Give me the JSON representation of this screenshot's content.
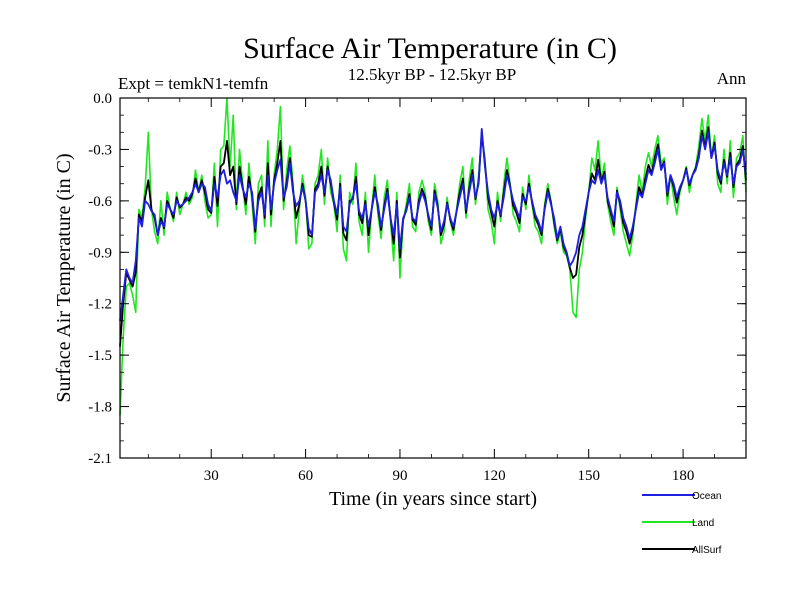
{
  "colors": {
    "ocean": "#1f1fe0",
    "land": "#22e622",
    "allsurf": "#000000",
    "axis": "#000000",
    "background": "#ffffff"
  },
  "chart_data": {
    "type": "line",
    "title": "Surface Air Temperature (in C)",
    "subtitle": "12.5kyr BP - 12.5kyr BP",
    "left_string": "Expt = temkN1-temfn",
    "right_string": "Ann",
    "xlabel": "Time (in years since start)",
    "ylabel": "Surface Air Temperature (in C)",
    "xlim": [
      1,
      200
    ],
    "ylim": [
      -2.1,
      0.0
    ],
    "xticks": [
      30,
      60,
      90,
      120,
      150,
      180
    ],
    "yticks": [
      0.0,
      -0.3,
      -0.6,
      -0.9,
      -1.2,
      -1.5,
      -1.8,
      -2.1
    ],
    "ytick_labels": [
      "0.0",
      "-0.3",
      "-0.6",
      "-0.9",
      "-1.2",
      "-1.5",
      "-1.8",
      "-2.1"
    ],
    "grid": false,
    "legend_position": "bottom-right",
    "x_start": 1,
    "series": [
      {
        "name": "Ocean",
        "color": "#1f1fe0",
        "values": [
          -1.3,
          -1.15,
          -1.0,
          -1.05,
          -1.08,
          -0.95,
          -0.7,
          -0.75,
          -0.6,
          -0.62,
          -0.66,
          -0.68,
          -0.8,
          -0.72,
          -0.75,
          -0.62,
          -0.65,
          -0.68,
          -0.6,
          -0.63,
          -0.62,
          -0.6,
          -0.58,
          -0.55,
          -0.5,
          -0.55,
          -0.5,
          -0.52,
          -0.62,
          -0.66,
          -0.5,
          -0.58,
          -0.45,
          -0.42,
          -0.5,
          -0.48,
          -0.55,
          -0.6,
          -0.45,
          -0.53,
          -0.58,
          -0.5,
          -0.55,
          -0.76,
          -0.6,
          -0.55,
          -0.68,
          -0.45,
          -0.65,
          -0.5,
          -0.42,
          -0.36,
          -0.58,
          -0.52,
          -0.38,
          -0.55,
          -0.63,
          -0.6,
          -0.52,
          -0.6,
          -0.76,
          -0.8,
          -0.55,
          -0.52,
          -0.45,
          -0.55,
          -0.42,
          -0.48,
          -0.6,
          -0.68,
          -0.52,
          -0.75,
          -0.78,
          -0.62,
          -0.58,
          -0.5,
          -0.66,
          -0.7,
          -0.62,
          -0.75,
          -0.65,
          -0.55,
          -0.62,
          -0.75,
          -0.65,
          -0.55,
          -0.7,
          -0.8,
          -0.62,
          -0.88,
          -0.7,
          -0.66,
          -0.58,
          -0.7,
          -0.72,
          -0.62,
          -0.55,
          -0.6,
          -0.68,
          -0.75,
          -0.56,
          -0.64,
          -0.78,
          -0.72,
          -0.62,
          -0.7,
          -0.75,
          -0.66,
          -0.58,
          -0.5,
          -0.65,
          -0.55,
          -0.45,
          -0.58,
          -0.5,
          -0.18,
          -0.4,
          -0.55,
          -0.65,
          -0.7,
          -0.62,
          -0.68,
          -0.58,
          -0.45,
          -0.52,
          -0.6,
          -0.65,
          -0.7,
          -0.58,
          -0.6,
          -0.52,
          -0.6,
          -0.68,
          -0.72,
          -0.78,
          -0.65,
          -0.55,
          -0.62,
          -0.7,
          -0.82,
          -0.75,
          -0.85,
          -0.9,
          -0.98,
          -0.95,
          -0.9,
          -0.8,
          -0.75,
          -0.65,
          -0.55,
          -0.48,
          -0.5,
          -0.42,
          -0.5,
          -0.45,
          -0.58,
          -0.65,
          -0.72,
          -0.55,
          -0.6,
          -0.7,
          -0.75,
          -0.82,
          -0.75,
          -0.65,
          -0.55,
          -0.58,
          -0.5,
          -0.42,
          -0.45,
          -0.38,
          -0.3,
          -0.42,
          -0.38,
          -0.55,
          -0.45,
          -0.5,
          -0.58,
          -0.52,
          -0.48,
          -0.42,
          -0.5,
          -0.45,
          -0.42,
          -0.35,
          -0.22,
          -0.3,
          -0.2,
          -0.35,
          -0.28,
          -0.42,
          -0.48,
          -0.38,
          -0.45,
          -0.35,
          -0.5,
          -0.4,
          -0.38,
          -0.3,
          -0.45
        ]
      },
      {
        "name": "Land",
        "color": "#22e622",
        "values": [
          -1.85,
          -1.4,
          -1.1,
          -1.08,
          -1.15,
          -1.25,
          -0.65,
          -0.7,
          -0.52,
          -0.2,
          -0.65,
          -0.78,
          -0.85,
          -0.6,
          -0.8,
          -0.55,
          -0.65,
          -0.72,
          -0.55,
          -0.68,
          -0.62,
          -0.55,
          -0.62,
          -0.58,
          -0.42,
          -0.55,
          -0.45,
          -0.6,
          -0.7,
          -0.68,
          -0.38,
          -0.75,
          -0.3,
          -0.28,
          0.0,
          -0.4,
          -0.1,
          -0.65,
          -0.3,
          -0.5,
          -0.68,
          -0.38,
          -0.62,
          -0.85,
          -0.5,
          -0.45,
          -0.75,
          -0.25,
          -0.75,
          -0.45,
          -0.3,
          -0.05,
          -0.65,
          -0.42,
          -0.28,
          -0.5,
          -0.85,
          -0.65,
          -0.45,
          -0.58,
          -0.88,
          -0.85,
          -0.5,
          -0.45,
          -0.3,
          -0.62,
          -0.35,
          -0.55,
          -0.62,
          -0.78,
          -0.45,
          -0.88,
          -0.95,
          -0.55,
          -0.62,
          -0.38,
          -0.72,
          -0.8,
          -0.55,
          -0.9,
          -0.65,
          -0.45,
          -0.68,
          -0.82,
          -0.58,
          -0.48,
          -0.72,
          -0.95,
          -0.55,
          -1.05,
          -0.72,
          -0.62,
          -0.5,
          -0.75,
          -0.78,
          -0.55,
          -0.48,
          -0.55,
          -0.72,
          -0.8,
          -0.5,
          -0.6,
          -0.85,
          -0.78,
          -0.58,
          -0.72,
          -0.8,
          -0.65,
          -0.5,
          -0.4,
          -0.7,
          -0.48,
          -0.35,
          -0.62,
          -0.45,
          -0.22,
          -0.35,
          -0.65,
          -0.72,
          -0.85,
          -0.55,
          -0.72,
          -0.5,
          -0.35,
          -0.5,
          -0.68,
          -0.72,
          -0.78,
          -0.52,
          -0.65,
          -0.45,
          -0.62,
          -0.75,
          -0.78,
          -0.85,
          -0.62,
          -0.5,
          -0.6,
          -0.75,
          -0.85,
          -0.78,
          -0.9,
          -0.92,
          -1.0,
          -1.25,
          -1.28,
          -1.0,
          -0.9,
          -0.7,
          -0.55,
          -0.35,
          -0.42,
          -0.25,
          -0.48,
          -0.38,
          -0.62,
          -0.72,
          -0.8,
          -0.52,
          -0.65,
          -0.78,
          -0.85,
          -0.92,
          -0.8,
          -0.62,
          -0.45,
          -0.55,
          -0.4,
          -0.32,
          -0.4,
          -0.3,
          -0.22,
          -0.38,
          -0.35,
          -0.62,
          -0.45,
          -0.58,
          -0.68,
          -0.55,
          -0.48,
          -0.4,
          -0.55,
          -0.45,
          -0.4,
          -0.28,
          -0.12,
          -0.25,
          -0.1,
          -0.35,
          -0.22,
          -0.5,
          -0.55,
          -0.3,
          -0.5,
          -0.25,
          -0.58,
          -0.35,
          -0.32,
          -0.22,
          -0.55
        ]
      },
      {
        "name": "AllSurf",
        "color": "#000000",
        "values": [
          -1.45,
          -1.2,
          -1.02,
          -1.06,
          -1.1,
          -1.02,
          -0.68,
          -0.72,
          -0.58,
          -0.48,
          -0.65,
          -0.7,
          -0.8,
          -0.7,
          -0.76,
          -0.6,
          -0.65,
          -0.7,
          -0.58,
          -0.64,
          -0.62,
          -0.58,
          -0.6,
          -0.56,
          -0.47,
          -0.55,
          -0.48,
          -0.55,
          -0.65,
          -0.67,
          -0.46,
          -0.63,
          -0.4,
          -0.38,
          -0.25,
          -0.45,
          -0.4,
          -0.62,
          -0.4,
          -0.52,
          -0.62,
          -0.46,
          -0.57,
          -0.78,
          -0.57,
          -0.52,
          -0.7,
          -0.38,
          -0.68,
          -0.48,
          -0.38,
          -0.25,
          -0.6,
          -0.49,
          -0.35,
          -0.53,
          -0.7,
          -0.62,
          -0.5,
          -0.6,
          -0.8,
          -0.81,
          -0.53,
          -0.5,
          -0.4,
          -0.57,
          -0.4,
          -0.5,
          -0.61,
          -0.71,
          -0.5,
          -0.79,
          -0.83,
          -0.6,
          -0.59,
          -0.46,
          -0.68,
          -0.73,
          -0.6,
          -0.8,
          -0.65,
          -0.52,
          -0.64,
          -0.77,
          -0.63,
          -0.53,
          -0.7,
          -0.85,
          -0.6,
          -0.93,
          -0.71,
          -0.65,
          -0.56,
          -0.71,
          -0.74,
          -0.6,
          -0.53,
          -0.58,
          -0.69,
          -0.77,
          -0.54,
          -0.63,
          -0.8,
          -0.74,
          -0.61,
          -0.71,
          -0.77,
          -0.66,
          -0.55,
          -0.47,
          -0.67,
          -0.53,
          -0.42,
          -0.59,
          -0.49,
          -0.2,
          -0.38,
          -0.58,
          -0.67,
          -0.75,
          -0.6,
          -0.69,
          -0.55,
          -0.42,
          -0.51,
          -0.63,
          -0.67,
          -0.73,
          -0.56,
          -0.62,
          -0.5,
          -0.61,
          -0.7,
          -0.74,
          -0.8,
          -0.64,
          -0.53,
          -0.61,
          -0.72,
          -0.83,
          -0.76,
          -0.87,
          -0.91,
          -0.99,
          -1.05,
          -1.03,
          -0.87,
          -0.8,
          -0.67,
          -0.55,
          -0.44,
          -0.48,
          -0.36,
          -0.49,
          -0.43,
          -0.6,
          -0.67,
          -0.75,
          -0.54,
          -0.62,
          -0.73,
          -0.78,
          -0.85,
          -0.77,
          -0.64,
          -0.52,
          -0.57,
          -0.47,
          -0.39,
          -0.44,
          -0.35,
          -0.27,
          -0.41,
          -0.37,
          -0.57,
          -0.45,
          -0.52,
          -0.61,
          -0.53,
          -0.48,
          -0.41,
          -0.51,
          -0.45,
          -0.41,
          -0.33,
          -0.19,
          -0.29,
          -0.17,
          -0.35,
          -0.26,
          -0.44,
          -0.5,
          -0.36,
          -0.46,
          -0.32,
          -0.52,
          -0.39,
          -0.36,
          -0.28,
          -0.48
        ]
      }
    ]
  }
}
